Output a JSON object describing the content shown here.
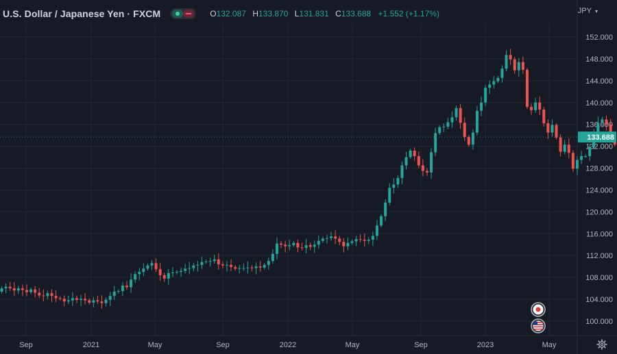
{
  "header": {
    "symbol_title": "U.S. Dollar / Japanese Yen · FXCM",
    "ohlc": {
      "o_label": "O",
      "o_value": "132.087",
      "h_label": "H",
      "h_value": "133.870",
      "l_label": "L",
      "l_value": "131.831",
      "c_label": "C",
      "c_value": "133.688",
      "change": "+1.552 (+1.17%)"
    },
    "currency": "JPY"
  },
  "colors": {
    "background": "#161a25",
    "grid": "#242833",
    "up": "#26a69a",
    "down": "#ef5350",
    "text": "#b2b5be",
    "last_price_line": "#26a69a"
  },
  "icons": [
    "visibility-toggle-icon",
    "chevron-down-icon",
    "japan-flag-icon",
    "us-flag-icon",
    "settings-gear-icon"
  ],
  "chart_data": {
    "type": "candlestick",
    "title": "U.S. Dollar / Japanese Yen · FXCM",
    "ylim": [
      97,
      154
    ],
    "y_ticks": [
      "100.000",
      "104.000",
      "108.000",
      "112.000",
      "116.000",
      "120.000",
      "124.000",
      "128.000",
      "132.000",
      "136.000",
      "140.000",
      "144.000",
      "148.000",
      "152.000"
    ],
    "x_ticks": [
      "Sep",
      "2021",
      "May",
      "Sep",
      "2022",
      "May",
      "Sep",
      "2023",
      "May"
    ],
    "last_price": "133.688",
    "grid": true,
    "closes": [
      106.0,
      106.3,
      106.0,
      105.6,
      106.0,
      105.7,
      105.3,
      105.8,
      105.2,
      104.7,
      104.6,
      105.1,
      104.6,
      104.2,
      104.1,
      103.6,
      103.8,
      104.2,
      103.9,
      104.1,
      103.8,
      103.4,
      103.8,
      103.6,
      103.3,
      103.9,
      104.6,
      105.4,
      105.5,
      106.5,
      106.2,
      107.6,
      108.6,
      109.0,
      109.6,
      110.2,
      110.6,
      109.5,
      108.4,
      107.8,
      108.8,
      108.9,
      109.0,
      109.2,
      109.6,
      109.7,
      110.2,
      110.3,
      110.8,
      110.9,
      111.0,
      111.3,
      110.4,
      110.2,
      110.3,
      109.9,
      109.6,
      109.7,
      109.7,
      109.8,
      109.7,
      110.0,
      109.8,
      110.3,
      111.0,
      112.3,
      114.2,
      114.0,
      113.7,
      113.9,
      114.3,
      113.5,
      113.4,
      113.9,
      113.6,
      114.0,
      114.7,
      115.1,
      115.2,
      115.5,
      115.1,
      114.5,
      113.7,
      114.3,
      114.6,
      115.0,
      114.9,
      114.7,
      114.9,
      115.6,
      117.5,
      119.2,
      121.7,
      124.4,
      125.0,
      126.2,
      128.5,
      130.0,
      131.2,
      130.2,
      128.5,
      127.5,
      127.2,
      130.9,
      134.4,
      135.5,
      135.6,
      136.4,
      137.3,
      139.0,
      136.3,
      133.7,
      132.3,
      134.5,
      138.5,
      140.0,
      142.7,
      143.3,
      143.9,
      144.5,
      146.2,
      148.7,
      147.9,
      145.9,
      147.4,
      146.0,
      139.2,
      138.6,
      140.0,
      138.7,
      136.2,
      134.5,
      135.9,
      133.6,
      131.0,
      132.3,
      130.8,
      127.9,
      129.5,
      130.2,
      130.2,
      131.9,
      134.3,
      136.3,
      136.9,
      136.0,
      134.0,
      132.3,
      131.2,
      132.1,
      133.688
    ],
    "series": [
      {
        "name": "USDJPY",
        "unit": "weekly OHLC"
      }
    ]
  },
  "events": {
    "japan_flag": "JP",
    "us_flag": "US"
  }
}
